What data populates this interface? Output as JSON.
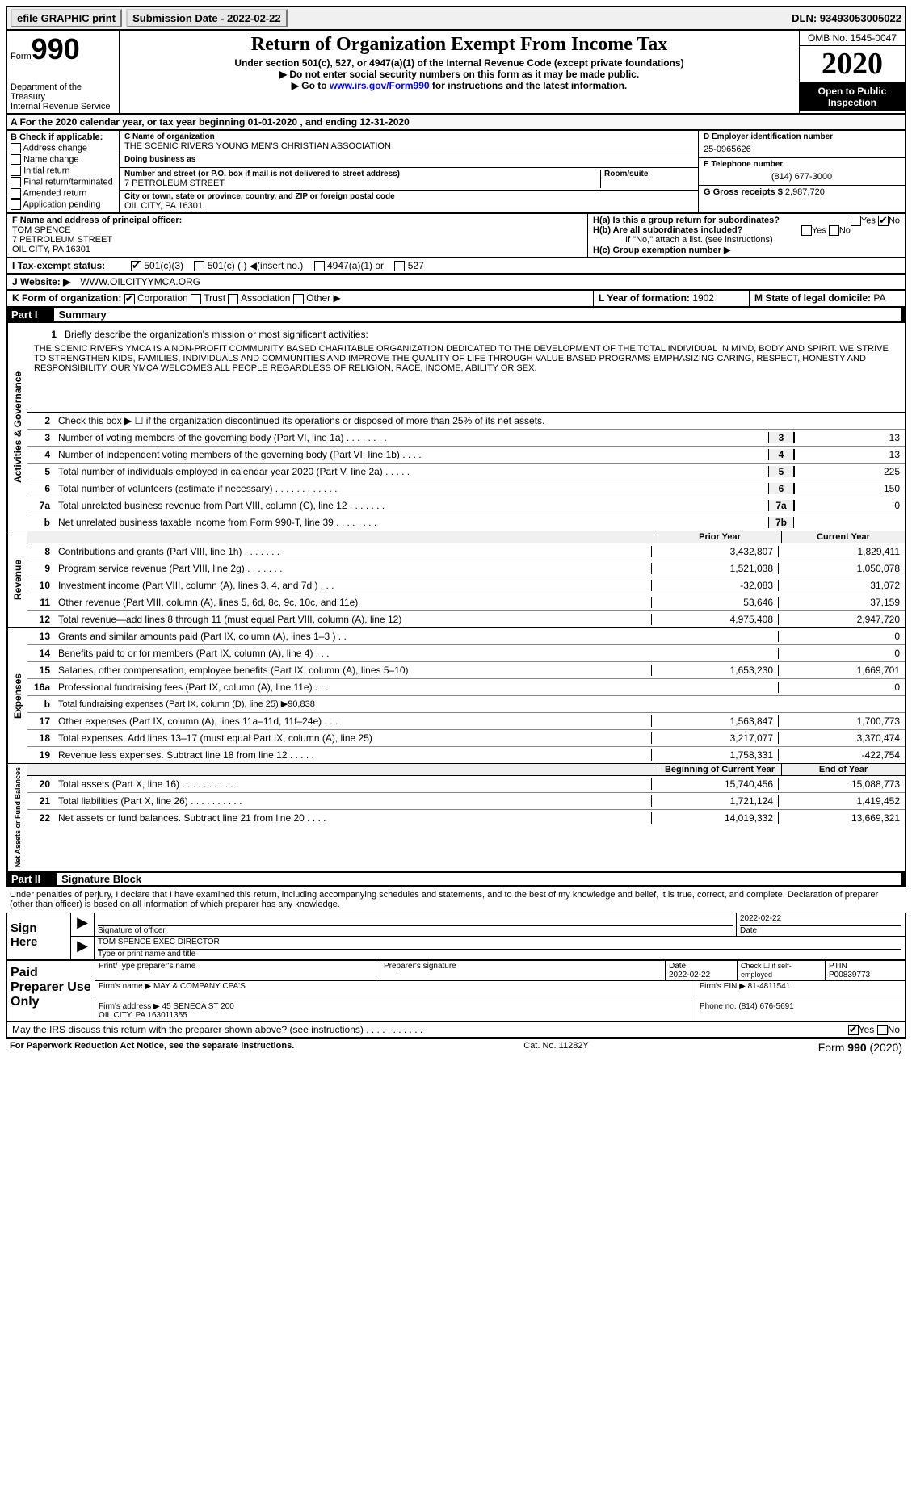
{
  "topbar": {
    "efile": "efile GRAPHIC print",
    "submission": "Submission Date - 2022-02-22",
    "dln": "DLN: 93493053005022"
  },
  "header": {
    "form_label": "Form",
    "form_num": "990",
    "dept": "Department of the Treasury\nInternal Revenue Service",
    "title": "Return of Organization Exempt From Income Tax",
    "subtitle": "Under section 501(c), 527, or 4947(a)(1) of the Internal Revenue Code (except private foundations)",
    "sub2": "▶ Do not enter social security numbers on this form as it may be made public.",
    "sub3": "▶ Go to www.irs.gov/Form990 for instructions and the latest information.",
    "omb": "OMB No. 1545-0047",
    "year": "2020",
    "open": "Open to Public Inspection"
  },
  "a_row": "A For the 2020 calendar year, or tax year beginning 01-01-2020   , and ending 12-31-2020",
  "b": {
    "title": "B Check if applicable:",
    "items": [
      "Address change",
      "Name change",
      "Initial return",
      "Final return/terminated",
      "Amended return",
      "Application pending"
    ]
  },
  "c": {
    "name_label": "C Name of organization",
    "name": "THE SCENIC RIVERS YOUNG MEN'S CHRISTIAN ASSOCIATION",
    "dba_label": "Doing business as",
    "dba": "",
    "street_label": "Number and street (or P.O. box if mail is not delivered to street address)",
    "street": "7 PETROLEUM STREET",
    "room_label": "Room/suite",
    "room": "",
    "city_label": "City or town, state or province, country, and ZIP or foreign postal code",
    "city": "OIL CITY, PA  16301"
  },
  "d": {
    "label": "D Employer identification number",
    "ein": "25-0965626",
    "e_label": "E Telephone number",
    "phone": "(814) 677-3000",
    "g_label": "G Gross receipts $",
    "gross": "2,987,720"
  },
  "f": {
    "label": "F  Name and address of principal officer:",
    "name": "TOM SPENCE",
    "street": "7 PETROLEUM STREET",
    "city": "OIL CITY, PA  16301"
  },
  "h": {
    "ha": "H(a)  Is this a group return for subordinates?",
    "hb": "H(b)  Are all subordinates included?",
    "hb_note": "If \"No,\" attach a list. (see instructions)",
    "hc": "H(c)  Group exemption number ▶"
  },
  "i": {
    "label": "I   Tax-exempt status:",
    "opts": [
      "501(c)(3)",
      "501(c) (  ) ◀(insert no.)",
      "4947(a)(1) or",
      "527"
    ]
  },
  "j": {
    "label": "J  Website: ▶",
    "value": "WWW.OILCITYYMCA.ORG"
  },
  "k": {
    "label": "K Form of organization:",
    "opts": [
      "Corporation",
      "Trust",
      "Association",
      "Other ▶"
    ]
  },
  "l": {
    "label": "L Year of formation:",
    "value": "1902"
  },
  "m": {
    "label": "M State of legal domicile:",
    "value": "PA"
  },
  "part1": {
    "num": "Part I",
    "title": "Summary"
  },
  "mission": {
    "q": "Briefly describe the organization's mission or most significant activities:",
    "text": "THE SCENIC RIVERS YMCA IS A NON-PROFIT COMMUNITY BASED CHARITABLE ORGANIZATION DEDICATED TO THE DEVELOPMENT OF THE TOTAL INDIVIDUAL IN MIND, BODY AND SPIRIT. WE STRIVE TO STRENGTHEN KIDS, FAMILIES, INDIVIDUALS AND COMMUNITIES AND IMPROVE THE QUALITY OF LIFE THROUGH VALUE BASED PROGRAMS EMPHASIZING CARING, RESPECT, HONESTY AND RESPONSIBILITY. OUR YMCA WELCOMES ALL PEOPLE REGARDLESS OF RELIGION, RACE, INCOME, ABILITY OR SEX."
  },
  "gov_lines": [
    {
      "n": "2",
      "d": "Check this box ▶ ☐  if the organization discontinued its operations or disposed of more than 25% of its net assets."
    },
    {
      "n": "3",
      "d": "Number of voting members of the governing body (Part VI, line 1a)   .   .   .   .   .   .   .   .",
      "box": "3",
      "v": "13"
    },
    {
      "n": "4",
      "d": "Number of independent voting members of the governing body (Part VI, line 1b)   .   .   .   .",
      "box": "4",
      "v": "13"
    },
    {
      "n": "5",
      "d": "Total number of individuals employed in calendar year 2020 (Part V, line 2a)   .   .   .   .   .",
      "box": "5",
      "v": "225"
    },
    {
      "n": "6",
      "d": "Total number of volunteers (estimate if necessary)   .   .   .   .   .   .   .   .   .   .   .   .",
      "box": "6",
      "v": "150"
    },
    {
      "n": "7a",
      "d": "Total unrelated business revenue from Part VIII, column (C), line 12   .   .   .   .   .   .   .",
      "box": "7a",
      "v": "0"
    },
    {
      "n": "b",
      "d": "Net unrelated business taxable income from Form 990-T, line 39   .   .   .   .   .   .   .   .",
      "box": "7b",
      "v": ""
    }
  ],
  "col_headers": {
    "prior": "Prior Year",
    "current": "Current Year"
  },
  "revenue_lines": [
    {
      "n": "8",
      "d": "Contributions and grants (Part VIII, line 1h)   .   .   .   .   .   .   .",
      "py": "3,432,807",
      "cy": "1,829,411"
    },
    {
      "n": "9",
      "d": "Program service revenue (Part VIII, line 2g)   .   .   .   .   .   .   .",
      "py": "1,521,038",
      "cy": "1,050,078"
    },
    {
      "n": "10",
      "d": "Investment income (Part VIII, column (A), lines 3, 4, and 7d )   .   .   .",
      "py": "-32,083",
      "cy": "31,072"
    },
    {
      "n": "11",
      "d": "Other revenue (Part VIII, column (A), lines 5, 6d, 8c, 9c, 10c, and 11e)",
      "py": "53,646",
      "cy": "37,159"
    },
    {
      "n": "12",
      "d": "Total revenue—add lines 8 through 11 (must equal Part VIII, column (A), line 12)",
      "py": "4,975,408",
      "cy": "2,947,720"
    }
  ],
  "expense_lines": [
    {
      "n": "13",
      "d": "Grants and similar amounts paid (Part IX, column (A), lines 1–3 )   .   .",
      "py": "",
      "cy": "0"
    },
    {
      "n": "14",
      "d": "Benefits paid to or for members (Part IX, column (A), line 4)   .   .   .",
      "py": "",
      "cy": "0"
    },
    {
      "n": "15",
      "d": "Salaries, other compensation, employee benefits (Part IX, column (A), lines 5–10)",
      "py": "1,653,230",
      "cy": "1,669,701"
    },
    {
      "n": "16a",
      "d": "Professional fundraising fees (Part IX, column (A), line 11e)   .   .   .",
      "py": "",
      "cy": "0"
    },
    {
      "n": "b",
      "d": "Total fundraising expenses (Part IX, column (D), line 25) ▶90,838",
      "py": null,
      "cy": null
    },
    {
      "n": "17",
      "d": "Other expenses (Part IX, column (A), lines 11a–11d, 11f–24e)   .   .   .",
      "py": "1,563,847",
      "cy": "1,700,773"
    },
    {
      "n": "18",
      "d": "Total expenses. Add lines 13–17 (must equal Part IX, column (A), line 25)",
      "py": "3,217,077",
      "cy": "3,370,474"
    },
    {
      "n": "19",
      "d": "Revenue less expenses. Subtract line 18 from line 12   .   .   .   .   .",
      "py": "1,758,331",
      "cy": "-422,754"
    }
  ],
  "net_headers": {
    "begin": "Beginning of Current Year",
    "end": "End of Year"
  },
  "net_lines": [
    {
      "n": "20",
      "d": "Total assets (Part X, line 16)   .   .   .   .   .   .   .   .   .   .   .",
      "py": "15,740,456",
      "cy": "15,088,773"
    },
    {
      "n": "21",
      "d": "Total liabilities (Part X, line 26)   .   .   .   .   .   .   .   .   .   .",
      "py": "1,721,124",
      "cy": "1,419,452"
    },
    {
      "n": "22",
      "d": "Net assets or fund balances. Subtract line 21 from line 20   .   .   .   .",
      "py": "14,019,332",
      "cy": "13,669,321"
    }
  ],
  "vert_labels": {
    "gov": "Activities & Governance",
    "rev": "Revenue",
    "exp": "Expenses",
    "net": "Net Assets or Fund Balances"
  },
  "part2": {
    "num": "Part II",
    "title": "Signature Block"
  },
  "sig_text": "Under penalties of perjury, I declare that I have examined this return, including accompanying schedules and statements, and to the best of my knowledge and belief, it is true, correct, and complete. Declaration of preparer (other than officer) is based on all information of which preparer has any knowledge.",
  "sign": {
    "label": "Sign Here",
    "sig_officer": "Signature of officer",
    "date_label": "Date",
    "date": "2022-02-22",
    "name_label": "Type or print name and title",
    "name": "TOM SPENCE  EXEC DIRECTOR"
  },
  "preparer": {
    "label": "Paid Preparer Use Only",
    "print_name_label": "Print/Type preparer's name",
    "print_name": "",
    "sig_label": "Preparer's signature",
    "date_label": "Date",
    "date": "2022-02-22",
    "check_label": "Check ☐ if self-employed",
    "ptin_label": "PTIN",
    "ptin": "P00839773",
    "firm_name_label": "Firm's name   ▶",
    "firm_name": "MAY & COMPANY CPA'S",
    "firm_ein_label": "Firm's EIN ▶",
    "firm_ein": "81-4811541",
    "firm_addr_label": "Firm's address ▶",
    "firm_addr": "45 SENECA ST 200\nOIL CITY, PA  163011355",
    "phone_label": "Phone no.",
    "phone": "(814) 676-5691"
  },
  "discuss": "May the IRS discuss this return with the preparer shown above? (see instructions)   .   .   .   .   .   .   .   .   .   .   .",
  "footer": {
    "left": "For Paperwork Reduction Act Notice, see the separate instructions.",
    "center": "Cat. No. 11282Y",
    "right": "Form 990 (2020)"
  }
}
